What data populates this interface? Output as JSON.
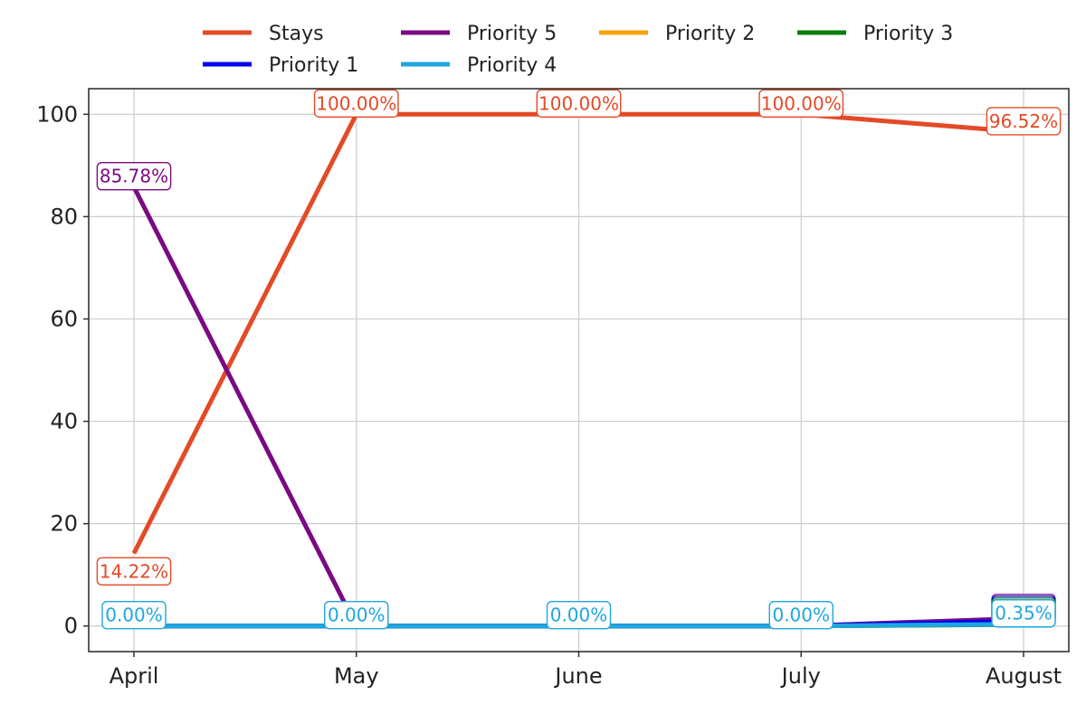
{
  "chart_data": {
    "type": "line",
    "title": "",
    "xlabel": "",
    "ylabel": "",
    "categories": [
      "April",
      "May",
      "June",
      "July",
      "August"
    ],
    "ylim": [
      -5,
      105
    ],
    "yticks": [
      0,
      20,
      40,
      60,
      80,
      100
    ],
    "grid": true,
    "legend_position": "top-center",
    "series": [
      {
        "name": "Stays",
        "color": "#e34a26",
        "values": [
          14.22,
          100.0,
          100.0,
          100.0,
          96.52
        ]
      },
      {
        "name": "Priority 5",
        "color": "#7b0a82",
        "values": [
          85.78,
          0.0,
          0.0,
          0.0,
          1.5
        ]
      },
      {
        "name": "Priority 2",
        "color": "#f5a40c",
        "values": [
          0.0,
          0.0,
          0.0,
          0.0,
          0.3
        ]
      },
      {
        "name": "Priority 3",
        "color": "#0a7d0a",
        "values": [
          0.0,
          0.0,
          0.0,
          0.0,
          0.3
        ]
      },
      {
        "name": "Priority 1",
        "color": "#0000ee",
        "values": [
          0.0,
          0.0,
          0.0,
          0.0,
          1.0
        ]
      },
      {
        "name": "Priority 4",
        "color": "#1ea6e0",
        "values": [
          0.0,
          0.0,
          0.0,
          0.0,
          0.35
        ]
      }
    ],
    "annotations": [
      {
        "series": "Stays",
        "index": 0,
        "text": "14.22%",
        "placement": "below"
      },
      {
        "series": "Stays",
        "index": 1,
        "text": "100.00%",
        "placement": "above"
      },
      {
        "series": "Stays",
        "index": 2,
        "text": "100.00%",
        "placement": "above"
      },
      {
        "series": "Stays",
        "index": 3,
        "text": "100.00%",
        "placement": "above"
      },
      {
        "series": "Stays",
        "index": 4,
        "text": "96.52%",
        "placement": "above"
      },
      {
        "series": "Priority 5",
        "index": 0,
        "text": "85.78%",
        "placement": "above"
      },
      {
        "series": "Priority 4",
        "index": 0,
        "text": "0.00%",
        "placement": "center"
      },
      {
        "series": "Priority 4",
        "index": 1,
        "text": "0.00%",
        "placement": "center"
      },
      {
        "series": "Priority 4",
        "index": 2,
        "text": "0.00%",
        "placement": "center"
      },
      {
        "series": "Priority 4",
        "index": 3,
        "text": "0.00%",
        "placement": "center"
      },
      {
        "series": "Priority 4",
        "index": 4,
        "text": "0.35%",
        "placement": "center"
      }
    ]
  }
}
